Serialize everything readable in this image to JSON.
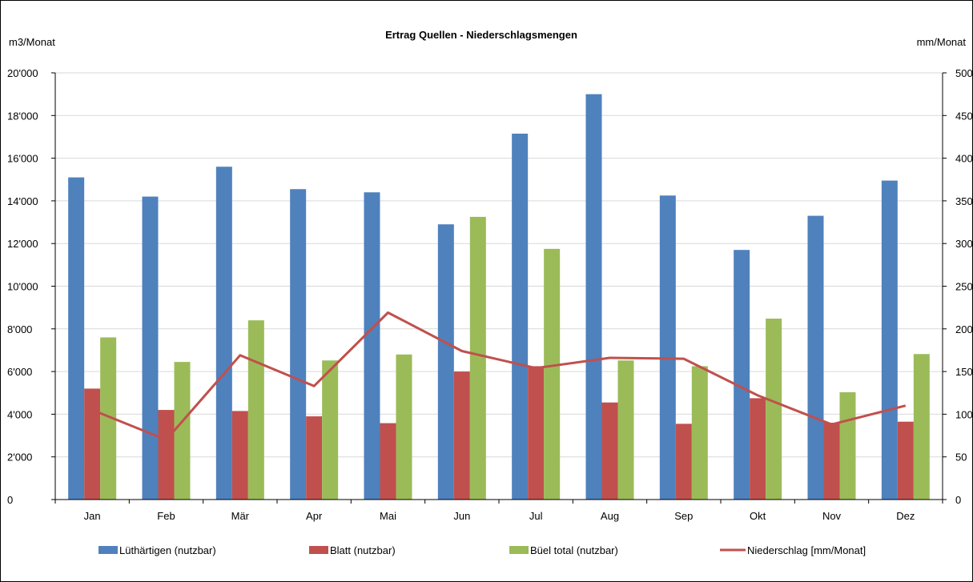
{
  "chart_data": {
    "type": "bar",
    "title": "Ertrag Quellen - Niederschlagsmengen",
    "ylabel": "m3/Monat",
    "y2label": "mm/Monat",
    "ylim": [
      0,
      20000
    ],
    "y2lim": [
      0,
      500
    ],
    "yticks": [
      "0",
      "2'000",
      "4'000",
      "6'000",
      "8'000",
      "10'000",
      "12'000",
      "14'000",
      "16'000",
      "18'000",
      "20'000"
    ],
    "y2ticks": [
      "0",
      "50",
      "100",
      "150",
      "200",
      "250",
      "300",
      "350",
      "400",
      "450",
      "500"
    ],
    "grid": true,
    "legend": "bottom",
    "categories": [
      "Jan",
      "Feb",
      "Mär",
      "Apr",
      "Mai",
      "Jun",
      "Jul",
      "Aug",
      "Sep",
      "Okt",
      "Nov",
      "Dez"
    ],
    "series": [
      {
        "name": "Lüthärtigen (nutzbar)",
        "type": "bar",
        "axis": "left",
        "color": "#4f81bd",
        "values": [
          15100,
          14200,
          15600,
          14550,
          14400,
          12900,
          17150,
          19000,
          14250,
          11700,
          13300,
          14950
        ]
      },
      {
        "name": "Blatt (nutzbar)",
        "type": "bar",
        "axis": "left",
        "color": "#c0504d",
        "values": [
          5200,
          4200,
          4150,
          3900,
          3580,
          6000,
          6250,
          4550,
          3550,
          4750,
          3600,
          3650
        ]
      },
      {
        "name": "Büel total (nutzbar)",
        "type": "bar",
        "axis": "left",
        "color": "#9bbb59",
        "values": [
          7600,
          6450,
          8400,
          6520,
          6800,
          13250,
          11750,
          6520,
          6250,
          8480,
          5030,
          6820
        ]
      },
      {
        "name": "Niederschlag [mm/Monat]",
        "type": "line",
        "axis": "right",
        "color": "#c0504d",
        "values": [
          105,
          70,
          169,
          133,
          219,
          174,
          154,
          166,
          165,
          122,
          88,
          110
        ]
      }
    ]
  }
}
